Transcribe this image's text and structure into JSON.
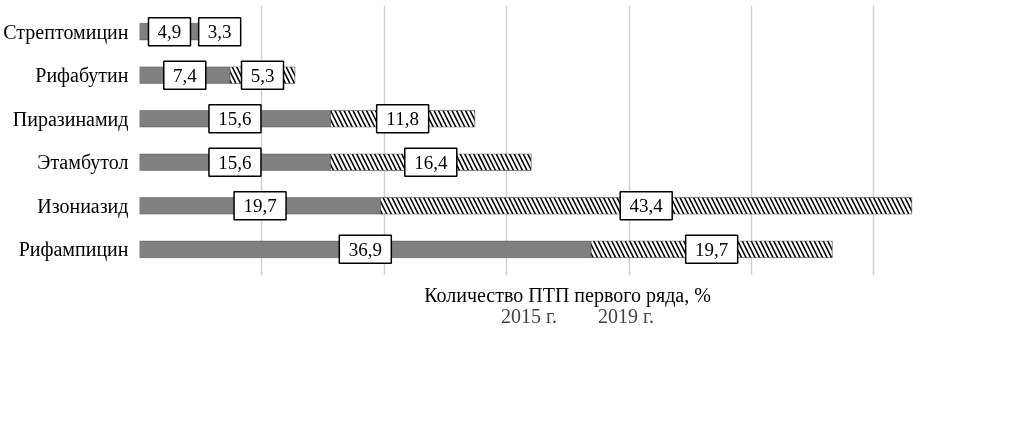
{
  "chart_data": {
    "type": "bar",
    "orientation": "horizontal",
    "stacked": true,
    "xlabel": "Количество ПТП первого ряда, %",
    "categories": [
      "Стрептомицин",
      "Рифабутин",
      "Пиразинамид",
      "Этамбутол",
      "Изониазид",
      "Рифампицин"
    ],
    "series": [
      {
        "name": "2015 г.",
        "color": "#808080",
        "values": [
          4.9,
          7.4,
          15.6,
          15.6,
          19.7,
          36.9
        ],
        "value_labels": [
          "4,9",
          "7,4",
          "15,6",
          "15,6",
          "19,7",
          "36,9"
        ]
      },
      {
        "name": "2019 г.",
        "color": "#000000",
        "values": [
          3.3,
          5.3,
          11.8,
          16.4,
          43.4,
          19.7
        ],
        "value_labels": [
          "3,3",
          "5,3",
          "11,8",
          "16,4",
          "43,4",
          "19,7"
        ]
      }
    ],
    "tick_labels": "y",
    "grid": "x",
    "legend": "bottom"
  }
}
